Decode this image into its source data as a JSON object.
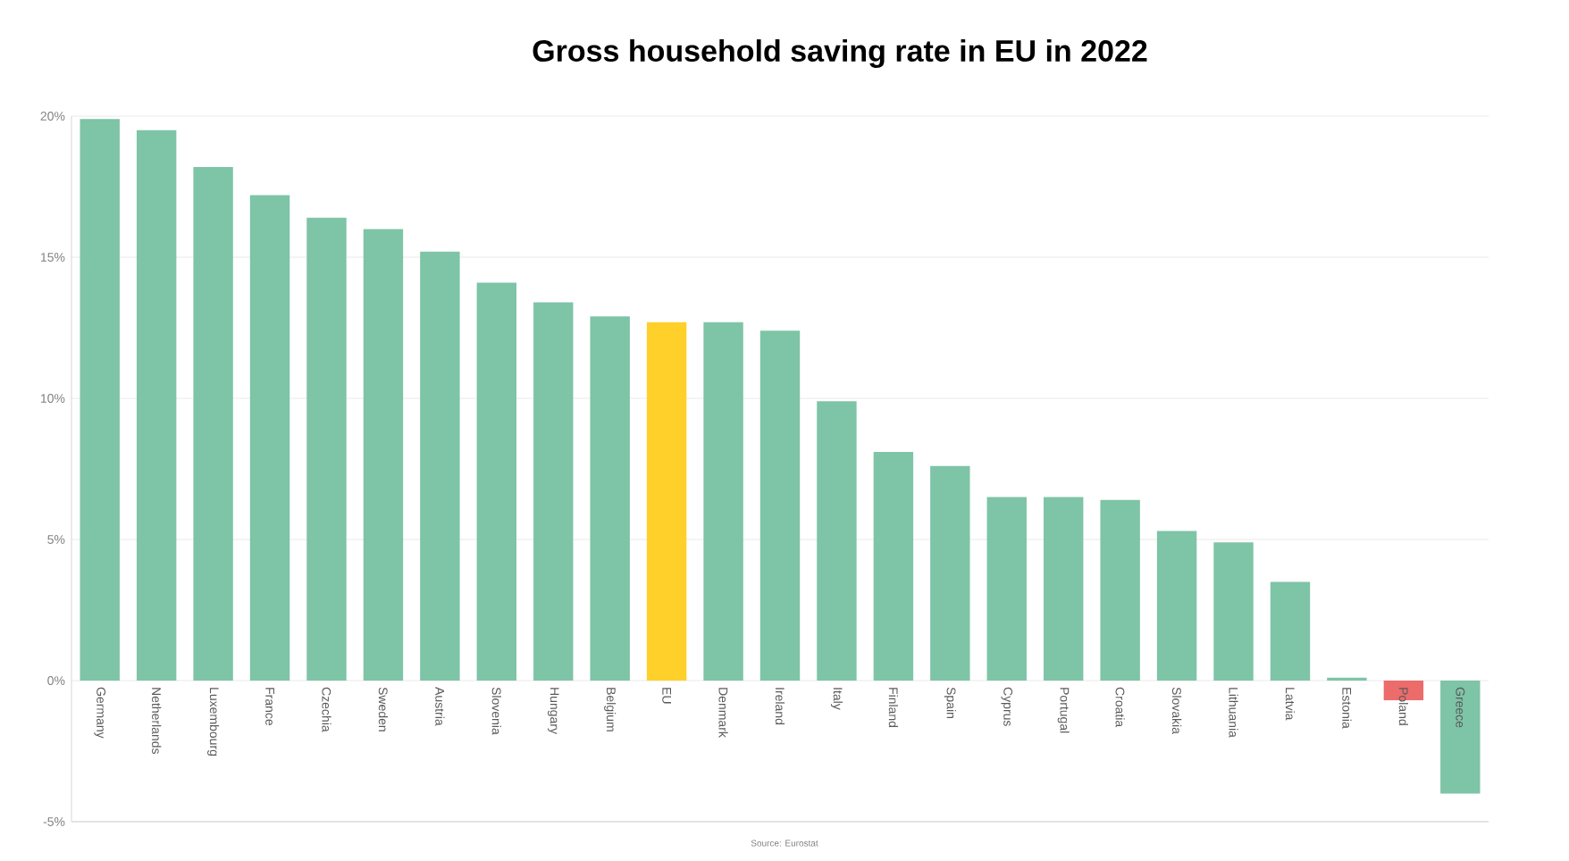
{
  "chart_data": {
    "type": "bar",
    "title": "Gross household saving rate in EU in 2022",
    "categories": [
      "Germany",
      "Netherlands",
      "Luxembourg",
      "France",
      "Czechia",
      "Sweden",
      "Austria",
      "Slovenia",
      "Hungary",
      "Belgium",
      "EU",
      "Denmark",
      "Ireland",
      "Italy",
      "Finland",
      "Spain",
      "Cyprus",
      "Portugal",
      "Croatia",
      "Slovakia",
      "Lithuania",
      "Latvia",
      "Estonia",
      "Poland",
      "Greece"
    ],
    "values": [
      19.9,
      19.5,
      18.2,
      17.2,
      16.4,
      16.0,
      15.2,
      14.1,
      13.4,
      12.9,
      12.7,
      12.7,
      12.4,
      9.9,
      8.1,
      7.6,
      6.5,
      6.5,
      6.4,
      5.3,
      4.9,
      3.5,
      0.1,
      -0.7,
      -4.0
    ],
    "colors": [
      "#7ec4a7",
      "#7ec4a7",
      "#7ec4a7",
      "#7ec4a7",
      "#7ec4a7",
      "#7ec4a7",
      "#7ec4a7",
      "#7ec4a7",
      "#7ec4a7",
      "#7ec4a7",
      "#ffd02a",
      "#7ec4a7",
      "#7ec4a7",
      "#7ec4a7",
      "#7ec4a7",
      "#7ec4a7",
      "#7ec4a7",
      "#7ec4a7",
      "#7ec4a7",
      "#7ec4a7",
      "#7ec4a7",
      "#7ec4a7",
      "#7ec4a7",
      "#ec6b6b",
      "#7ec4a7"
    ],
    "ylim": [
      -5,
      20
    ],
    "yticks": [
      {
        "value": -5,
        "label": "-5%"
      },
      {
        "value": 0,
        "label": "0%"
      },
      {
        "value": 5,
        "label": "5%"
      },
      {
        "value": 10,
        "label": "10%"
      },
      {
        "value": 15,
        "label": "15%"
      },
      {
        "value": 20,
        "label": "20%"
      }
    ],
    "grid": "y",
    "annotations": [
      "Source: Eurostat"
    ]
  }
}
